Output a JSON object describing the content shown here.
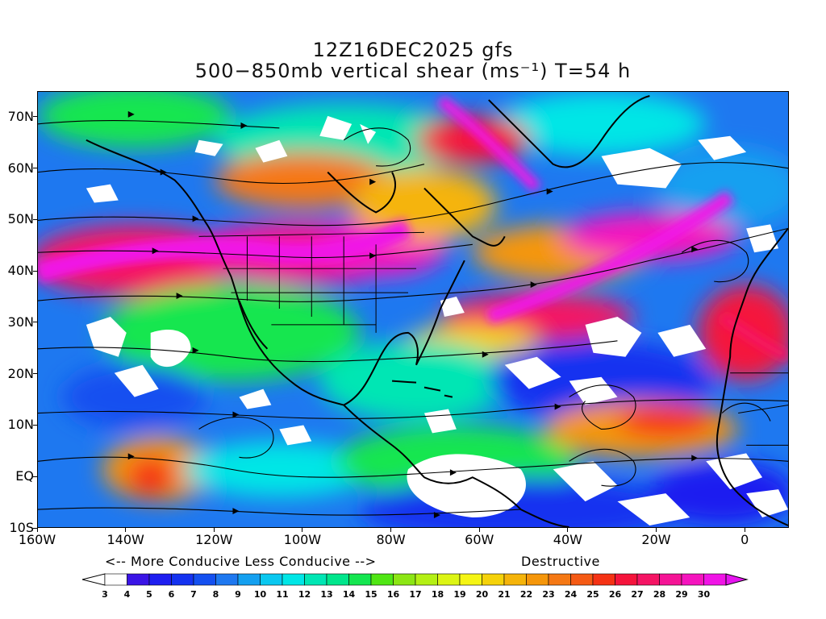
{
  "title": {
    "line1": "12Z16DEC2025 gfs",
    "line2": "500−850mb vertical shear (ms⁻¹) T=54 h"
  },
  "map": {
    "lon_range": [
      -160,
      10
    ],
    "lat_range": [
      -10,
      75
    ],
    "lat_labels": [
      "70N",
      "60N",
      "50N",
      "40N",
      "30N",
      "20N",
      "10N",
      "EQ",
      "10S"
    ],
    "lat_values": [
      70,
      60,
      50,
      40,
      30,
      20,
      10,
      0,
      -10
    ],
    "lon_labels": [
      "160W",
      "140W",
      "120W",
      "100W",
      "80W",
      "60W",
      "40W",
      "20W",
      "0"
    ],
    "lon_values": [
      -160,
      -140,
      -120,
      -100,
      -80,
      -60,
      -40,
      -20,
      0
    ]
  },
  "legend": {
    "conducive_text": "<-- More Conducive   Less Conducive -->",
    "destructive_text": "Destructive",
    "levels": [
      "3",
      "4",
      "5",
      "6",
      "7",
      "8",
      "9",
      "10",
      "11",
      "12",
      "13",
      "14",
      "15",
      "16",
      "17",
      "18",
      "19",
      "20",
      "21",
      "22",
      "23",
      "24",
      "25",
      "26",
      "27",
      "28",
      "29",
      "30"
    ],
    "colors": [
      "#ffffff",
      "#3a14e6",
      "#1e1ef0",
      "#1432f0",
      "#1450f0",
      "#1e78f0",
      "#14a0f0",
      "#0ac8f0",
      "#00e6e6",
      "#00e6b4",
      "#00e68c",
      "#14e650",
      "#50e614",
      "#8ce614",
      "#b4f014",
      "#dcf514",
      "#f5f514",
      "#f5d20a",
      "#f5b40a",
      "#f5960a",
      "#f57814",
      "#f55a14",
      "#f53214",
      "#f5143c",
      "#f51464",
      "#f51496",
      "#f514be",
      "#f014e6"
    ],
    "under_color": "#ffffff",
    "over_color": "#e614f0"
  }
}
